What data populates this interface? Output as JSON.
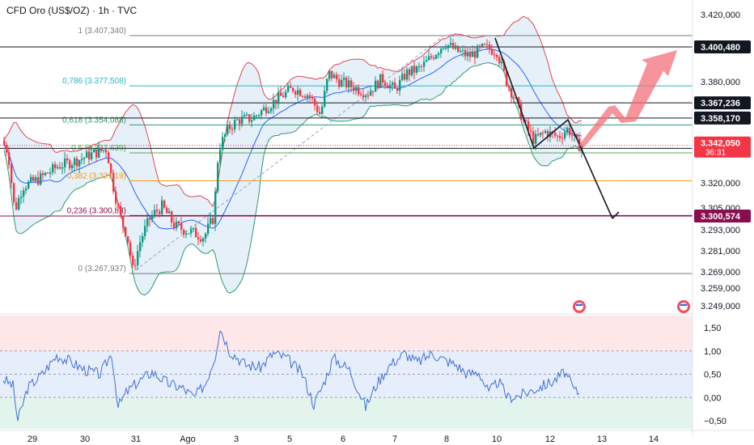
{
  "header": {
    "title": "CFD Oro (US$/OZ) · 1h · TVC"
  },
  "colors": {
    "bull": "#089981",
    "bear": "#f23645",
    "bb_upper": "#e0454e",
    "bb_lower": "#2a9d6f",
    "bb_mid": "#2962ff",
    "bb_fill": "#dbe9f7",
    "fib_786": "#22b5c9",
    "fib_618": "#2a9d6f",
    "fib_5": "#4caf50",
    "fib_382": "#ff9800",
    "fib_236": "#880e4f",
    "projection": "#f4707a",
    "osc": "#3f6fd8",
    "last_price": "#f23645"
  },
  "chart_data": [
    {
      "type": "candlestick",
      "title": "CFD Oro (US$/OZ) · 1h · TVC",
      "ylim": [
        3245,
        3425
      ],
      "x_ticks": [
        "29",
        "30",
        "31",
        "Ago",
        "3",
        "5",
        "6",
        "7",
        "8",
        "10",
        "12",
        "13",
        "14"
      ],
      "y_ticks": [
        "3.420,000",
        "3.400,000",
        "3.380,000",
        "3.360,000",
        "3.340,000",
        "3.320,000",
        "3.305,000",
        "3.293,000",
        "3.281,000",
        "3.269,000",
        "3.259,000",
        "3.249,000"
      ],
      "fib_levels": [
        {
          "label": "1 (3.407,340)",
          "value": 3407.34
        },
        {
          "label": "0,786 (3.377,508)",
          "value": 3377.508
        },
        {
          "label": "0,618 (3.354,088)",
          "value": 3354.088
        },
        {
          "label": "0,5 (3.337,639)",
          "value": 3337.639
        },
        {
          "label": "0,382 (3.321,19)",
          "value": 3321.19
        },
        {
          "label": "0,236 (3.300,83)",
          "value": 3300.83
        },
        {
          "label": "0 (3.267,937)",
          "value": 3267.937
        }
      ],
      "horizontal_levels": [
        {
          "label": "3.400,480",
          "value": 3400.48
        },
        {
          "label": "3.367,236",
          "value": 3367.236
        },
        {
          "label": "3.358,170",
          "value": 3358.17
        },
        {
          "label": "3.340,298",
          "value": 3340.298
        },
        {
          "label": "3.300,574",
          "value": 3300.574
        }
      ],
      "last_price": {
        "label": "3.342,050",
        "countdown": "36:31",
        "value": 3342.05
      },
      "anchors": [
        {
          "x": 0,
          "p": 3345
        },
        {
          "x": 8,
          "p": 3338
        },
        {
          "x": 16,
          "p": 3303
        },
        {
          "x": 26,
          "p": 3318
        },
        {
          "x": 45,
          "p": 3322
        },
        {
          "x": 70,
          "p": 3330
        },
        {
          "x": 92,
          "p": 3333
        },
        {
          "x": 112,
          "p": 3337
        },
        {
          "x": 130,
          "p": 3340
        },
        {
          "x": 136,
          "p": 3322
        },
        {
          "x": 146,
          "p": 3300
        },
        {
          "x": 155,
          "p": 3290
        },
        {
          "x": 162,
          "p": 3270
        },
        {
          "x": 172,
          "p": 3288
        },
        {
          "x": 184,
          "p": 3300
        },
        {
          "x": 198,
          "p": 3306
        },
        {
          "x": 214,
          "p": 3295
        },
        {
          "x": 232,
          "p": 3292
        },
        {
          "x": 250,
          "p": 3289
        },
        {
          "x": 262,
          "p": 3300
        },
        {
          "x": 268,
          "p": 3340
        },
        {
          "x": 280,
          "p": 3352
        },
        {
          "x": 292,
          "p": 3357
        },
        {
          "x": 310,
          "p": 3358
        },
        {
          "x": 328,
          "p": 3365
        },
        {
          "x": 342,
          "p": 3370
        },
        {
          "x": 360,
          "p": 3376
        },
        {
          "x": 380,
          "p": 3372
        },
        {
          "x": 394,
          "p": 3360
        },
        {
          "x": 404,
          "p": 3385
        },
        {
          "x": 418,
          "p": 3380
        },
        {
          "x": 434,
          "p": 3377
        },
        {
          "x": 452,
          "p": 3373
        },
        {
          "x": 470,
          "p": 3382
        },
        {
          "x": 486,
          "p": 3375
        },
        {
          "x": 500,
          "p": 3385
        },
        {
          "x": 518,
          "p": 3388
        },
        {
          "x": 532,
          "p": 3395
        },
        {
          "x": 548,
          "p": 3403
        },
        {
          "x": 562,
          "p": 3398
        },
        {
          "x": 578,
          "p": 3395
        },
        {
          "x": 596,
          "p": 3400
        },
        {
          "x": 612,
          "p": 3398
        },
        {
          "x": 624,
          "p": 3380
        },
        {
          "x": 636,
          "p": 3368
        },
        {
          "x": 646,
          "p": 3355
        },
        {
          "x": 658,
          "p": 3345
        },
        {
          "x": 672,
          "p": 3350
        },
        {
          "x": 688,
          "p": 3347
        },
        {
          "x": 700,
          "p": 3352
        },
        {
          "x": 712,
          "p": 3342
        }
      ]
    },
    {
      "type": "line",
      "ylim": [
        -0.75,
        1.75
      ],
      "y_ticks": [
        "1,50",
        "1,00",
        "0,50",
        "0,00",
        "−0,50"
      ],
      "anchors": [
        {
          "x": 0,
          "v": 0.4
        },
        {
          "x": 12,
          "v": 0.25
        },
        {
          "x": 18,
          "v": -0.5
        },
        {
          "x": 30,
          "v": 0.2
        },
        {
          "x": 48,
          "v": 0.5
        },
        {
          "x": 66,
          "v": 0.9
        },
        {
          "x": 80,
          "v": 0.8
        },
        {
          "x": 100,
          "v": 0.6
        },
        {
          "x": 120,
          "v": 0.5
        },
        {
          "x": 134,
          "v": 0.95
        },
        {
          "x": 142,
          "v": -0.2
        },
        {
          "x": 152,
          "v": 0.1
        },
        {
          "x": 164,
          "v": 0.3
        },
        {
          "x": 184,
          "v": 0.55
        },
        {
          "x": 204,
          "v": 0.3
        },
        {
          "x": 222,
          "v": 0.2
        },
        {
          "x": 236,
          "v": 0.0
        },
        {
          "x": 250,
          "v": 0.3
        },
        {
          "x": 262,
          "v": 0.9
        },
        {
          "x": 268,
          "v": 1.5
        },
        {
          "x": 280,
          "v": 1.0
        },
        {
          "x": 300,
          "v": 0.7
        },
        {
          "x": 318,
          "v": 0.65
        },
        {
          "x": 334,
          "v": 0.95
        },
        {
          "x": 350,
          "v": 0.85
        },
        {
          "x": 370,
          "v": 0.5
        },
        {
          "x": 384,
          "v": -0.15
        },
        {
          "x": 396,
          "v": 0.3
        },
        {
          "x": 408,
          "v": 0.85
        },
        {
          "x": 428,
          "v": 0.6
        },
        {
          "x": 448,
          "v": -0.2
        },
        {
          "x": 462,
          "v": 0.3
        },
        {
          "x": 478,
          "v": 0.7
        },
        {
          "x": 496,
          "v": 0.95
        },
        {
          "x": 512,
          "v": 0.75
        },
        {
          "x": 530,
          "v": 0.95
        },
        {
          "x": 546,
          "v": 0.8
        },
        {
          "x": 560,
          "v": 0.7
        },
        {
          "x": 574,
          "v": 0.5
        },
        {
          "x": 588,
          "v": 0.55
        },
        {
          "x": 600,
          "v": 0.1
        },
        {
          "x": 612,
          "v": 0.35
        },
        {
          "x": 624,
          "v": 0.0
        },
        {
          "x": 640,
          "v": 0.05
        },
        {
          "x": 660,
          "v": 0.2
        },
        {
          "x": 680,
          "v": 0.35
        },
        {
          "x": 694,
          "v": 0.55
        },
        {
          "x": 706,
          "v": 0.15
        },
        {
          "x": 712,
          "v": 0.1
        }
      ]
    }
  ]
}
